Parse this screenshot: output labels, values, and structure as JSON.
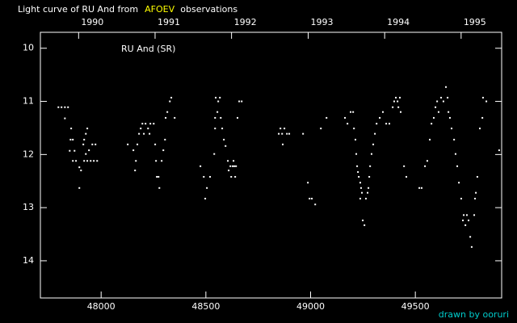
{
  "chart_data": {
    "type": "scatter",
    "title": [
      "Light curve of RU And from",
      "AFOEV",
      "observations"
    ],
    "title_colors": [
      "#ffffff",
      "#ffff00",
      "#ffffff"
    ],
    "annotation": "RU And (SR)",
    "credit": "drawn by ooruri",
    "credit_color": "#00cccc",
    "background": "#000000",
    "axis_color": "#ffffff",
    "xlim": [
      47710,
      49912
    ],
    "xticks": [
      48000,
      48500,
      49000,
      49500
    ],
    "x2ticks": [
      {
        "value": 47892.5,
        "label": "1990"
      },
      {
        "value": 48257.5,
        "label": "1991"
      },
      {
        "value": 48622.5,
        "label": "1992"
      },
      {
        "value": 48988.5,
        "label": "1993"
      },
      {
        "value": 49353.5,
        "label": "1994"
      },
      {
        "value": 49718.5,
        "label": "1995"
      }
    ],
    "ylim": [
      9.7,
      14.7
    ],
    "y_inverted": true,
    "yticks": [
      10,
      11,
      12,
      13,
      14
    ],
    "series": [
      {
        "color": "#ffffff",
        "x": [
          47796,
          47811,
          47827,
          47842,
          47827,
          47857,
          47854,
          47865,
          47850,
          47873,
          47865,
          47880,
          47896,
          47904,
          47896,
          47919,
          47927,
          47934,
          47915,
          47927,
          47919,
          47934,
          47942,
          47950,
          47965,
          47973,
          47958,
          47981,
          48127,
          48154,
          48166,
          48162,
          48173,
          48181,
          48189,
          48197,
          48204,
          48212,
          48224,
          48235,
          48251,
          48258,
          48262,
          48266,
          48274,
          48278,
          48289,
          48297,
          48305,
          48308,
          48316,
          48328,
          48335,
          48351,
          48231,
          48474,
          48490,
          48497,
          48505,
          48520,
          48540,
          48544,
          48544,
          48547,
          48555,
          48559,
          48567,
          48571,
          48578,
          48586,
          48594,
          48605,
          48609,
          48617,
          48621,
          48628,
          48632,
          48636,
          48640,
          48644,
          48651,
          48659,
          48671,
          48848,
          48856,
          48864,
          48867,
          48875,
          48887,
          48898,
          48964,
          48987,
          48995,
          49006,
          49022,
          49049,
          49076,
          49164,
          49176,
          49191,
          49203,
          49207,
          49214,
          49218,
          49222,
          49226,
          49230,
          49237,
          49241,
          49237,
          49245,
          49249,
          49257,
          49264,
          49272,
          49276,
          49280,
          49284,
          49291,
          49299,
          49307,
          49315,
          49330,
          49345,
          49361,
          49376,
          49392,
          49399,
          49407,
          49415,
          49419,
          49426,
          49430,
          49446,
          49457,
          49519,
          49530,
          49546,
          49557,
          49569,
          49577,
          49588,
          49596,
          49604,
          49611,
          49623,
          49634,
          49646,
          49654,
          49658,
          49665,
          49673,
          49685,
          49692,
          49700,
          49708,
          49719,
          49727,
          49731,
          49739,
          49746,
          49754,
          49762,
          49769,
          49781,
          49785,
          49789,
          49796,
          49808,
          49820,
          49823,
          49839,
          49900
        ],
        "values": [
          11.11,
          11.11,
          11.11,
          11.11,
          11.32,
          11.51,
          11.72,
          11.72,
          11.93,
          11.93,
          12.12,
          12.12,
          12.24,
          12.3,
          12.63,
          11.72,
          11.61,
          11.51,
          11.81,
          11.99,
          12.12,
          12.12,
          11.92,
          12.12,
          12.12,
          11.81,
          11.81,
          12.12,
          11.81,
          11.92,
          12.12,
          12.3,
          11.81,
          11.61,
          11.51,
          11.42,
          11.61,
          11.42,
          11.51,
          11.42,
          11.42,
          11.81,
          12.12,
          12.42,
          12.42,
          12.63,
          12.12,
          11.92,
          11.72,
          11.31,
          11.2,
          11.0,
          10.93,
          11.31,
          11.61,
          12.22,
          12.42,
          12.83,
          12.63,
          12.42,
          11.99,
          11.51,
          11.31,
          10.93,
          11.2,
          11.0,
          10.93,
          11.31,
          11.51,
          11.72,
          11.84,
          12.12,
          12.3,
          12.22,
          12.42,
          12.22,
          12.12,
          12.22,
          12.42,
          12.22,
          11.31,
          11.0,
          11.0,
          11.61,
          11.51,
          11.61,
          11.81,
          11.51,
          11.61,
          11.61,
          11.61,
          12.53,
          12.83,
          12.83,
          12.94,
          11.51,
          11.31,
          11.31,
          11.42,
          11.2,
          11.2,
          11.51,
          11.72,
          11.99,
          12.22,
          12.33,
          12.42,
          12.53,
          12.63,
          12.83,
          12.72,
          13.24,
          13.33,
          12.83,
          12.72,
          12.63,
          12.42,
          12.22,
          11.99,
          11.81,
          11.61,
          11.42,
          11.31,
          11.2,
          11.42,
          11.42,
          11.11,
          11.0,
          10.93,
          11.0,
          11.11,
          10.93,
          11.2,
          12.22,
          12.42,
          12.63,
          12.63,
          12.22,
          12.12,
          11.72,
          11.42,
          11.31,
          11.11,
          11.0,
          11.2,
          10.93,
          11.0,
          10.73,
          10.93,
          11.2,
          11.31,
          11.51,
          11.72,
          11.99,
          12.22,
          12.53,
          12.83,
          13.24,
          13.14,
          13.33,
          13.14,
          13.24,
          13.55,
          13.74,
          13.14,
          12.83,
          12.72,
          12.42,
          11.51,
          11.31,
          10.93,
          11.0,
          11.92
        ]
      }
    ]
  }
}
